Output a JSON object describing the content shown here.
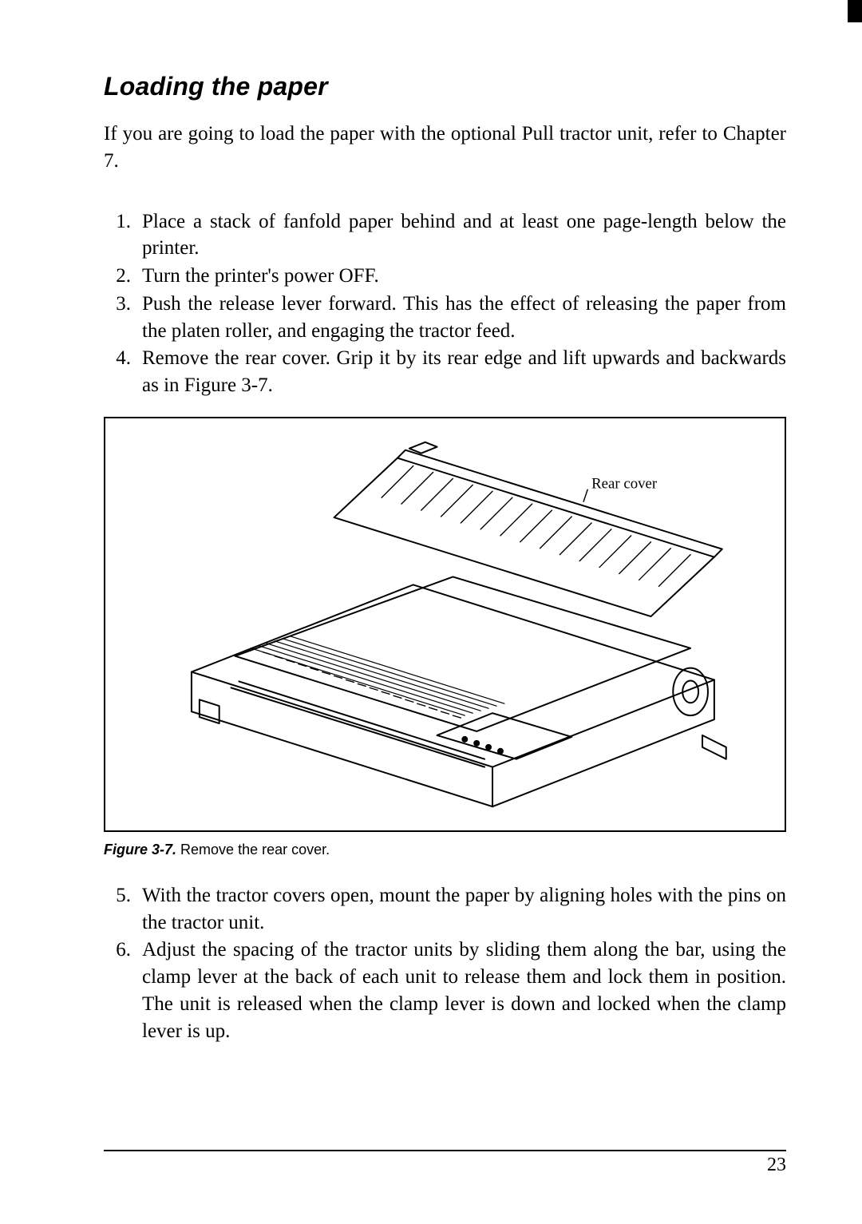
{
  "section_title": "Loading the paper",
  "intro": "If you are going to load the paper with the optional Pull tractor unit, refer to Chapter 7.",
  "steps_first": [
    "Place a stack of fanfold paper behind and at least one page-length below the printer.",
    "Turn the printer's power OFF.",
    "Push the release lever forward. This has the effect of releasing the paper from the platen roller, and engaging the tractor feed.",
    "Remove the rear cover. Grip it by its rear edge and lift upwards and backwards as in Figure 3-7."
  ],
  "figure": {
    "label_number": "Figure 3-7.",
    "label_text": "Remove the rear cover.",
    "callout": "Rear cover",
    "border_color": "#000000",
    "stroke_color": "#000000",
    "background_color": "#ffffff"
  },
  "steps_second_start": 5,
  "steps_second": [
    "With the tractor covers open, mount the paper by aligning holes with the pins on the tractor unit.",
    "Adjust the spacing of the tractor units by sliding them along the bar, using the clamp lever at the back of each unit to release them and lock them in position. The unit is released when the clamp lever is down and locked when the clamp lever is up."
  ],
  "page_number": "23",
  "typography": {
    "title_family": "Arial",
    "title_size_pt": 24,
    "title_weight": "bold",
    "title_style": "italic",
    "body_family": "Times New Roman",
    "body_size_pt": 19,
    "caption_family": "Arial",
    "caption_size_pt": 13
  },
  "colors": {
    "text": "#000000",
    "background": "#ffffff",
    "rule": "#000000"
  }
}
